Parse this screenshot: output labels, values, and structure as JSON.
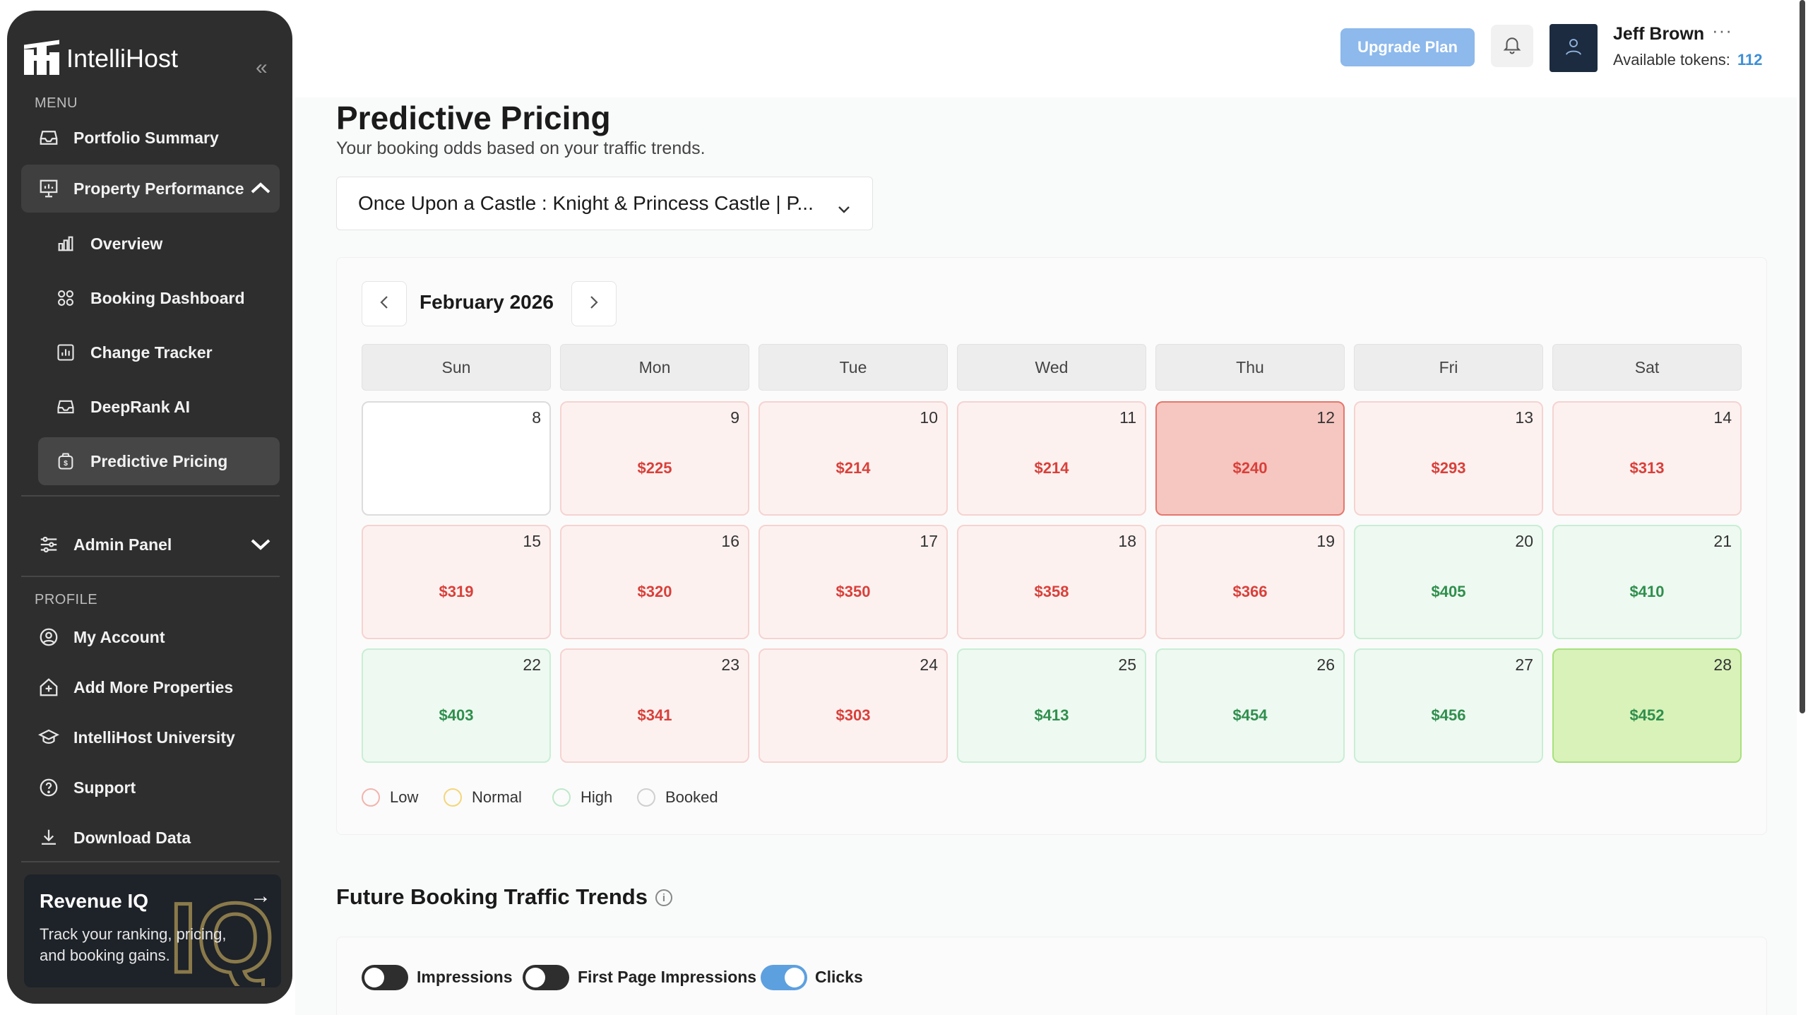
{
  "app": {
    "name": "IntelliHost"
  },
  "sidebar": {
    "menu_label": "MENU",
    "profile_label": "PROFILE",
    "items": {
      "portfolio": "Portfolio Summary",
      "property_performance": "Property Performance",
      "overview": "Overview",
      "booking_dashboard": "Booking Dashboard",
      "change_tracker": "Change Tracker",
      "deeprank": "DeepRank AI",
      "predictive_pricing": "Predictive Pricing",
      "admin_panel": "Admin Panel",
      "my_account": "My Account",
      "add_properties": "Add More Properties",
      "university": "IntelliHost University",
      "support": "Support",
      "download": "Download Data"
    },
    "promo": {
      "title": "Revenue IQ",
      "text": "Track your ranking, pricing, and booking gains.",
      "arrow": "→"
    }
  },
  "header": {
    "upgrade_label": "Upgrade Plan",
    "user_name": "Jeff Brown",
    "more": "···",
    "tokens_label": "Available tokens:",
    "tokens_value": "112"
  },
  "page": {
    "title": "Predictive Pricing",
    "subtitle": "Your booking odds based on your traffic trends.",
    "property_selected": "Once Upon a Castle : Knight & Princess Castle | P..."
  },
  "calendar": {
    "month": "February 2026",
    "days": [
      "Sun",
      "Mon",
      "Tue",
      "Wed",
      "Thu",
      "Fri",
      "Sat"
    ],
    "cells": [
      {
        "day": "8",
        "price": "",
        "level": "empty"
      },
      {
        "day": "9",
        "price": "$225",
        "level": "low"
      },
      {
        "day": "10",
        "price": "$214",
        "level": "low"
      },
      {
        "day": "11",
        "price": "$214",
        "level": "low"
      },
      {
        "day": "12",
        "price": "$240",
        "level": "low-sel"
      },
      {
        "day": "13",
        "price": "$293",
        "level": "low"
      },
      {
        "day": "14",
        "price": "$313",
        "level": "low"
      },
      {
        "day": "15",
        "price": "$319",
        "level": "low"
      },
      {
        "day": "16",
        "price": "$320",
        "level": "low"
      },
      {
        "day": "17",
        "price": "$350",
        "level": "low"
      },
      {
        "day": "18",
        "price": "$358",
        "level": "low"
      },
      {
        "day": "19",
        "price": "$366",
        "level": "low"
      },
      {
        "day": "20",
        "price": "$405",
        "level": "high"
      },
      {
        "day": "21",
        "price": "$410",
        "level": "high"
      },
      {
        "day": "22",
        "price": "$403",
        "level": "high"
      },
      {
        "day": "23",
        "price": "$341",
        "level": "low"
      },
      {
        "day": "24",
        "price": "$303",
        "level": "low"
      },
      {
        "day": "25",
        "price": "$413",
        "level": "high"
      },
      {
        "day": "26",
        "price": "$454",
        "level": "high"
      },
      {
        "day": "27",
        "price": "$456",
        "level": "high"
      },
      {
        "day": "28",
        "price": "$452",
        "level": "high-sel"
      }
    ],
    "legend": [
      {
        "label": "Low",
        "color": "#f2b4ae"
      },
      {
        "label": "Normal",
        "color": "#f3d67a"
      },
      {
        "label": "High",
        "color": "#bfe8cb"
      },
      {
        "label": "Booked",
        "color": "#cfcfcf"
      }
    ]
  },
  "trends": {
    "title": "Future Booking Traffic Trends",
    "toggles": [
      {
        "label": "Impressions",
        "on": false
      },
      {
        "label": "First Page Impressions",
        "on": false
      },
      {
        "label": "Clicks",
        "on": true
      }
    ]
  },
  "colors": {
    "sidebar_bg": "#2e2e2e",
    "accent_blue": "#5da0df",
    "low_text": "#d9403a",
    "high_text": "#2f8f4d"
  }
}
